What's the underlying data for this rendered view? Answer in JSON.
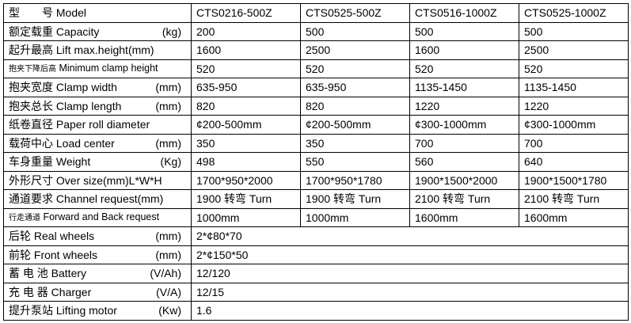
{
  "header": {
    "label": "型　　号 Model",
    "models": [
      "CTS0216-500Z",
      "CTS0525-500Z",
      "CTS0516-1000Z",
      "CTS0525-1000Z"
    ]
  },
  "rows": [
    {
      "cn": "额定载重",
      "en": " Capacity",
      "unit": "(kg)",
      "values": [
        "200",
        "500",
        "500",
        "500"
      ]
    },
    {
      "cn": "起升最高",
      "en": " Lift max.height(mm)",
      "unit": "",
      "values": [
        "1600",
        "2500",
        "1600",
        "2500"
      ]
    },
    {
      "cn": "抱夹下降后高",
      "en": " Minimum clamp height",
      "unit": "",
      "small": true,
      "values": [
        "520",
        "520",
        "520",
        "520"
      ]
    },
    {
      "cn": "抱夹宽度",
      "en": " Clamp width",
      "unit": "(mm)",
      "values": [
        "635-950",
        "635-950",
        "1135-1450",
        "1135-1450"
      ]
    },
    {
      "cn": "抱夹总长",
      "en": " Clamp length",
      "unit": "(mm)",
      "values": [
        "820",
        "820",
        "1220",
        "1220"
      ]
    },
    {
      "cn": "纸卷直径",
      "en": " Paper roll diameter",
      "unit": "",
      "values": [
        "¢200-500mm",
        "¢200-500mm",
        "¢300-1000mm",
        "¢300-1000mm"
      ]
    },
    {
      "cn": "载荷中心",
      "en": " Load center",
      "unit": "(mm)",
      "values": [
        "350",
        "350",
        "700",
        "700"
      ]
    },
    {
      "cn": "车身重量",
      "en": " Weight",
      "unit": "(Kg)",
      "values": [
        "498",
        "550",
        "560",
        "640"
      ]
    },
    {
      "cn": "外形尺寸",
      "en": " Over size(mm)L*W*H",
      "unit": "",
      "values": [
        "1700*950*2000",
        "1700*950*1780",
        "1900*1500*2000",
        "1900*1500*1780"
      ]
    },
    {
      "cn": "通道要求",
      "en": "  Channel request(mm)",
      "unit": "",
      "values": [
        "1900 转弯 Turn",
        "1900 转弯 Turn",
        "2100 转弯 Turn",
        "2100 转弯 Turn"
      ]
    },
    {
      "cn": "行走通道",
      "en": " Forward and Back request",
      "unit": "",
      "small": true,
      "values": [
        "1000mm",
        "1000mm",
        "1600mm",
        "1600mm"
      ]
    }
  ],
  "shared_rows": [
    {
      "cn": "后轮",
      "en": "  Real wheels",
      "unit": "(mm)",
      "value": "2*¢80*70"
    },
    {
      "cn": "前轮",
      "en": " Front wheels",
      "unit": "(mm)",
      "value": "2*¢150*50"
    },
    {
      "cn": "蓄 电 池",
      "en": " Battery",
      "unit": "(V/Ah)",
      "value": "12/120"
    },
    {
      "cn": "充 电 器",
      "en": " Charger",
      "unit": "(V/A)",
      "value": "12/15"
    },
    {
      "cn": "提升泵站",
      "en": " Lifting motor",
      "unit": "(Kw)",
      "value": "1.6"
    }
  ]
}
